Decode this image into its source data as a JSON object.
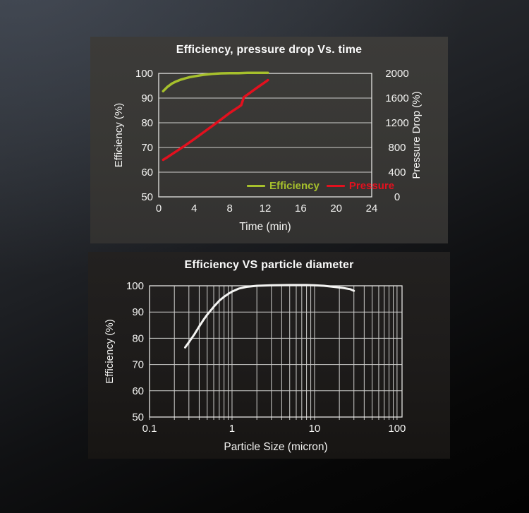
{
  "chart_data": [
    {
      "type": "line",
      "title": "Efficiency, pressure drop Vs. time",
      "xlabel": "Time (min)",
      "x": {
        "min": 0,
        "max": 24,
        "scale": "linear",
        "ticks": [
          0,
          4,
          8,
          12,
          16,
          20,
          24
        ]
      },
      "y_left": {
        "label": "Efficiency (%)",
        "min": 50,
        "max": 100,
        "ticks": [
          50,
          60,
          70,
          80,
          90,
          100
        ]
      },
      "y_right": {
        "label": "Pressure Drop (%)",
        "min": 0,
        "max": 2000,
        "ticks": [
          0,
          400,
          800,
          1200,
          1600,
          2000
        ]
      },
      "grid": "horizontal",
      "legend": {
        "position": "inside-bottom",
        "items": [
          {
            "label": "Efficiency",
            "color": "#a6c02c"
          },
          {
            "label": "Pressure",
            "color": "#e3101e"
          }
        ]
      },
      "series": [
        {
          "name": "Efficiency",
          "axis": "left",
          "color": "#a6c02c",
          "width": 3.5,
          "points": [
            [
              0.5,
              92.8
            ],
            [
              1,
              94.6
            ],
            [
              1.5,
              95.9
            ],
            [
              2,
              96.8
            ],
            [
              2.5,
              97.5
            ],
            [
              3,
              98.0
            ],
            [
              3.5,
              98.5
            ],
            [
              4,
              98.8
            ],
            [
              4.5,
              99.1
            ],
            [
              5,
              99.4
            ],
            [
              6,
              99.8
            ],
            [
              7,
              100.0
            ],
            [
              8,
              100.1
            ],
            [
              9,
              100.1
            ],
            [
              10,
              100.2
            ],
            [
              11,
              100.2
            ],
            [
              12.3,
              100.2
            ]
          ]
        },
        {
          "name": "Pressure",
          "axis": "right",
          "color": "#e3101e",
          "width": 3.5,
          "points": [
            [
              0.5,
              600
            ],
            [
              1,
              645
            ],
            [
              2,
              740
            ],
            [
              3,
              835
            ],
            [
              4,
              935
            ],
            [
              5,
              1040
            ],
            [
              6,
              1145
            ],
            [
              7,
              1250
            ],
            [
              8,
              1360
            ],
            [
              9,
              1455
            ],
            [
              9.3,
              1485
            ],
            [
              9.6,
              1615
            ],
            [
              10,
              1655
            ],
            [
              11,
              1760
            ],
            [
              12,
              1860
            ],
            [
              12.3,
              1890
            ]
          ]
        }
      ]
    },
    {
      "type": "line",
      "title": "Efficiency VS particle diameter",
      "xlabel": "Particle Size (micron)",
      "x": {
        "min": 0.1,
        "max": 115,
        "scale": "log",
        "ticks": [
          0.1,
          1,
          10,
          100
        ]
      },
      "y_left": {
        "label": "Efficiency (%)",
        "min": 50,
        "max": 100,
        "ticks": [
          50,
          60,
          70,
          80,
          90,
          100
        ]
      },
      "grid": "both",
      "series": [
        {
          "name": "Efficiency",
          "axis": "left",
          "color": "#f4f4f2",
          "width": 3,
          "points": [
            [
              0.27,
              76.5
            ],
            [
              0.3,
              78.5
            ],
            [
              0.35,
              81.5
            ],
            [
              0.4,
              84.5
            ],
            [
              0.45,
              87.0
            ],
            [
              0.5,
              89.0
            ],
            [
              0.6,
              92.0
            ],
            [
              0.7,
              94.3
            ],
            [
              0.8,
              95.8
            ],
            [
              0.9,
              96.9
            ],
            [
              1,
              97.8
            ],
            [
              1.2,
              98.9
            ],
            [
              1.5,
              99.6
            ],
            [
              2,
              100.0
            ],
            [
              3,
              100.2
            ],
            [
              5,
              100.3
            ],
            [
              8,
              100.3
            ],
            [
              10,
              100.2
            ],
            [
              13,
              100.0
            ],
            [
              17,
              99.6
            ],
            [
              22,
              99.2
            ],
            [
              27,
              98.7
            ],
            [
              30,
              98.1
            ]
          ]
        }
      ]
    }
  ]
}
